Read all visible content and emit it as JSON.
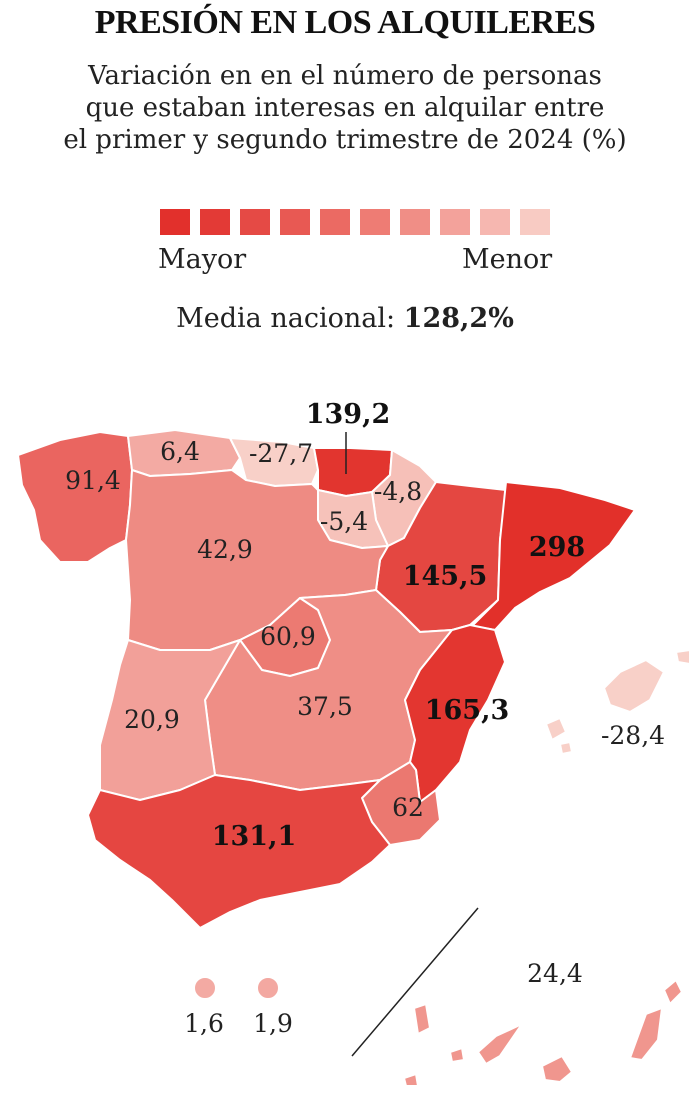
{
  "title": "PRESIÓN EN LOS ALQUILERES",
  "subtitle": [
    "Variación en en el número de personas",
    "que estaban interesas en alquilar entre",
    "el primer y segundo trimestre de 2024  (%)"
  ],
  "legend": {
    "high_label": "Mayor",
    "low_label": "Menor",
    "colors": [
      "#e2302c",
      "#e33a36",
      "#e54a45",
      "#e85953",
      "#eb6a63",
      "#ee7c74",
      "#f08e86",
      "#f3a29b",
      "#f6b7b0",
      "#f8cbc3"
    ]
  },
  "media": {
    "label": "Media nacional:",
    "value": "128,2%"
  },
  "regions": [
    {
      "name": "Galicia",
      "value": "91,4",
      "color": "#ea6560"
    },
    {
      "name": "Asturias",
      "value": "6,4",
      "color": "#f3aaa3"
    },
    {
      "name": "Cantabria",
      "value": "-27,7",
      "color": "#f8d0c8"
    },
    {
      "name": "País Vasco",
      "value": "139,2",
      "color": "#e2352f"
    },
    {
      "name": "Navarra",
      "value": "-4,8",
      "color": "#f6c0b8"
    },
    {
      "name": "La Rioja",
      "value": "-5,4",
      "color": "#f6c2ba"
    },
    {
      "name": "Aragón",
      "value": "145,5",
      "color": "#e44741"
    },
    {
      "name": "Cataluña",
      "value": "298",
      "color": "#e2302a"
    },
    {
      "name": "Castilla y León",
      "value": "42,9",
      "color": "#ee8b83"
    },
    {
      "name": "Madrid",
      "value": "60,9",
      "color": "#ec7a72"
    },
    {
      "name": "Castilla-La Mancha",
      "value": "37,5",
      "color": "#ef8e86"
    },
    {
      "name": "Extremadura",
      "value": "20,9",
      "color": "#f2a099"
    },
    {
      "name": "C. Valenciana",
      "value": "165,3",
      "color": "#e33630"
    },
    {
      "name": "Murcia",
      "value": "62",
      "color": "#eb7870"
    },
    {
      "name": "Andalucía",
      "value": "131,1",
      "color": "#e54641"
    },
    {
      "name": "Baleares",
      "value": "-28,4",
      "color": "#f8d0c8"
    },
    {
      "name": "Canarias",
      "value": "24,4",
      "color": "#f0968e"
    },
    {
      "name": "Ceuta",
      "value": "1,6",
      "color": "#f3aaa3"
    },
    {
      "name": "Melilla",
      "value": "1,9",
      "color": "#f3a8a1"
    }
  ]
}
